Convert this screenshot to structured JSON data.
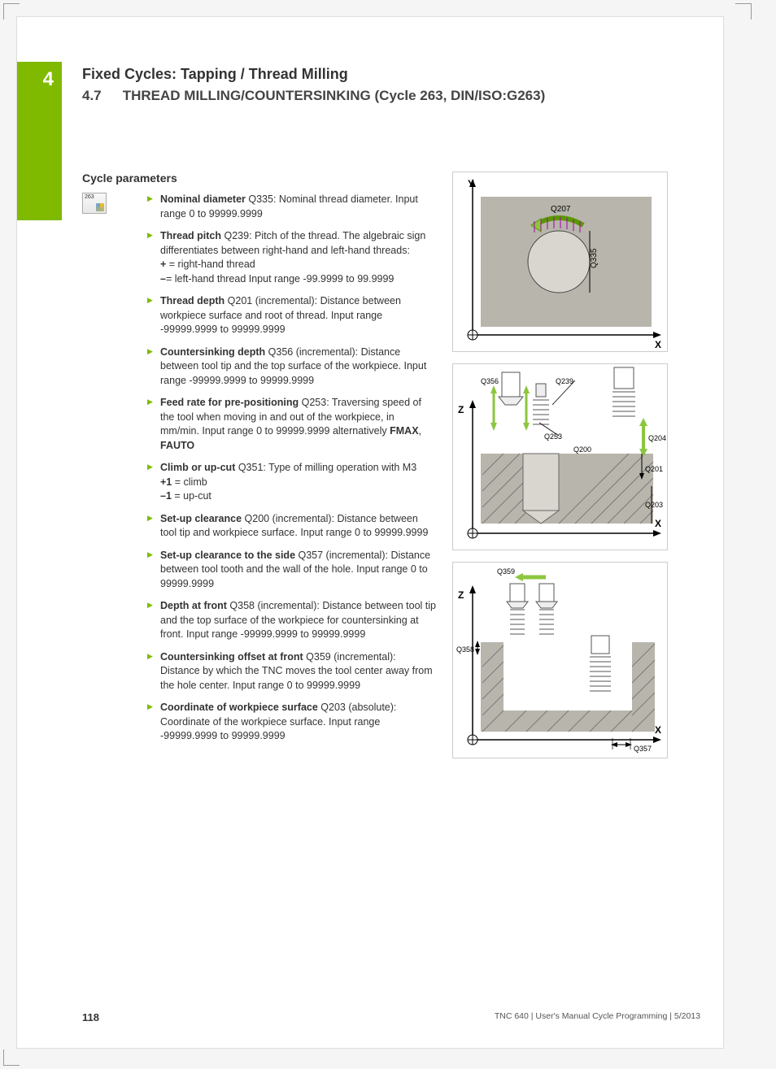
{
  "chapter_number": "4",
  "chapter_title": "Fixed Cycles: Tapping / Thread Milling",
  "section_number": "4.7",
  "section_title": "THREAD MILLING/COUNTERSINKING (Cycle 263, DIN/ISO:G263)",
  "subheading": "Cycle parameters",
  "icon_label": "263",
  "params": [
    {
      "name": "Nominal diameter",
      "code": "Q335",
      "text": ": Nominal thread diameter. Input range 0 to 99999.9999"
    },
    {
      "name": "Thread pitch",
      "code": "Q239",
      "text": ": Pitch of the thread. The algebraic sign differentiates between right-hand and left-hand threads:<br><b>+</b> = right-hand thread<br><b>–</b>= left-hand thread Input range -99.9999 to 99.9999"
    },
    {
      "name": "Thread depth",
      "code": "Q201",
      "text": " (incremental): Distance between workpiece surface and root of thread. Input range -99999.9999 to 99999.9999"
    },
    {
      "name": "Countersinking depth",
      "code": "Q356",
      "text": " (incremental): Distance between tool tip and the top surface of the workpiece. Input range -99999.9999 to 99999.9999"
    },
    {
      "name": "Feed rate for pre-positioning",
      "code": "Q253",
      "text": ": Traversing speed of the tool when moving in and out of the workpiece, in mm/min. Input range 0 to 99999.9999 alternatively <b>FMAX</b>, <b>FAUTO</b>"
    },
    {
      "name": "Climb or up-cut",
      "code": "Q351",
      "text": ": Type of milling operation with M3<br><b>+1</b> = climb<br><b>–1</b> = up-cut"
    },
    {
      "name": "Set-up clearance",
      "code": "Q200",
      "text": " (incremental): Distance between tool tip and workpiece surface. Input range 0 to 99999.9999"
    },
    {
      "name": "Set-up clearance to the side",
      "code": "Q357",
      "text": " (incremental): Distance between tool tooth and the wall of the hole. Input range 0 to 99999.9999"
    },
    {
      "name": "Depth at front",
      "code": "Q358",
      "text": " (incremental): Distance between tool tip and the top surface of the workpiece for countersinking at front. Input range -99999.9999 to 99999.9999"
    },
    {
      "name": "Countersinking offset at front",
      "code": "Q359",
      "text": " (incremental): Distance by which the TNC moves the tool center away from the hole center. Input range 0 to 99999.9999"
    },
    {
      "name": "Coordinate of workpiece surface",
      "code": "Q203",
      "text": " (absolute): Coordinate of the workpiece surface. Input range -99999.9999 to 99999.9999"
    }
  ],
  "diagrams": {
    "d1": {
      "axis_y": "Y",
      "axis_x": "X",
      "labels": [
        "Q207",
        "Q335"
      ],
      "colors": {
        "bg": "#b8b5ac",
        "circle": "#d8d6ce",
        "arrow": "#8cc63f",
        "hatch": "#a800a8"
      }
    },
    "d2": {
      "axis_z": "Z",
      "axis_x": "X",
      "labels": [
        "Q356",
        "Q239",
        "Q253",
        "Q200",
        "Q204",
        "Q201",
        "Q203"
      ],
      "workpiece": "#b8b5ac",
      "hatch": "#8a8a8a",
      "arrow": "#8cc63f"
    },
    "d3": {
      "axis_z": "Z",
      "axis_x": "X",
      "labels": [
        "Q359",
        "Q358",
        "Q357"
      ],
      "workpiece": "#b8b5ac",
      "arrow": "#8cc63f"
    }
  },
  "footer": {
    "page": "118",
    "text": "TNC 640 | User's Manual Cycle Programming | 5/2013"
  },
  "style": {
    "accent": "#7fba00",
    "text": "#333333",
    "font_body_pt": 12.5,
    "font_title_pt": 18
  }
}
